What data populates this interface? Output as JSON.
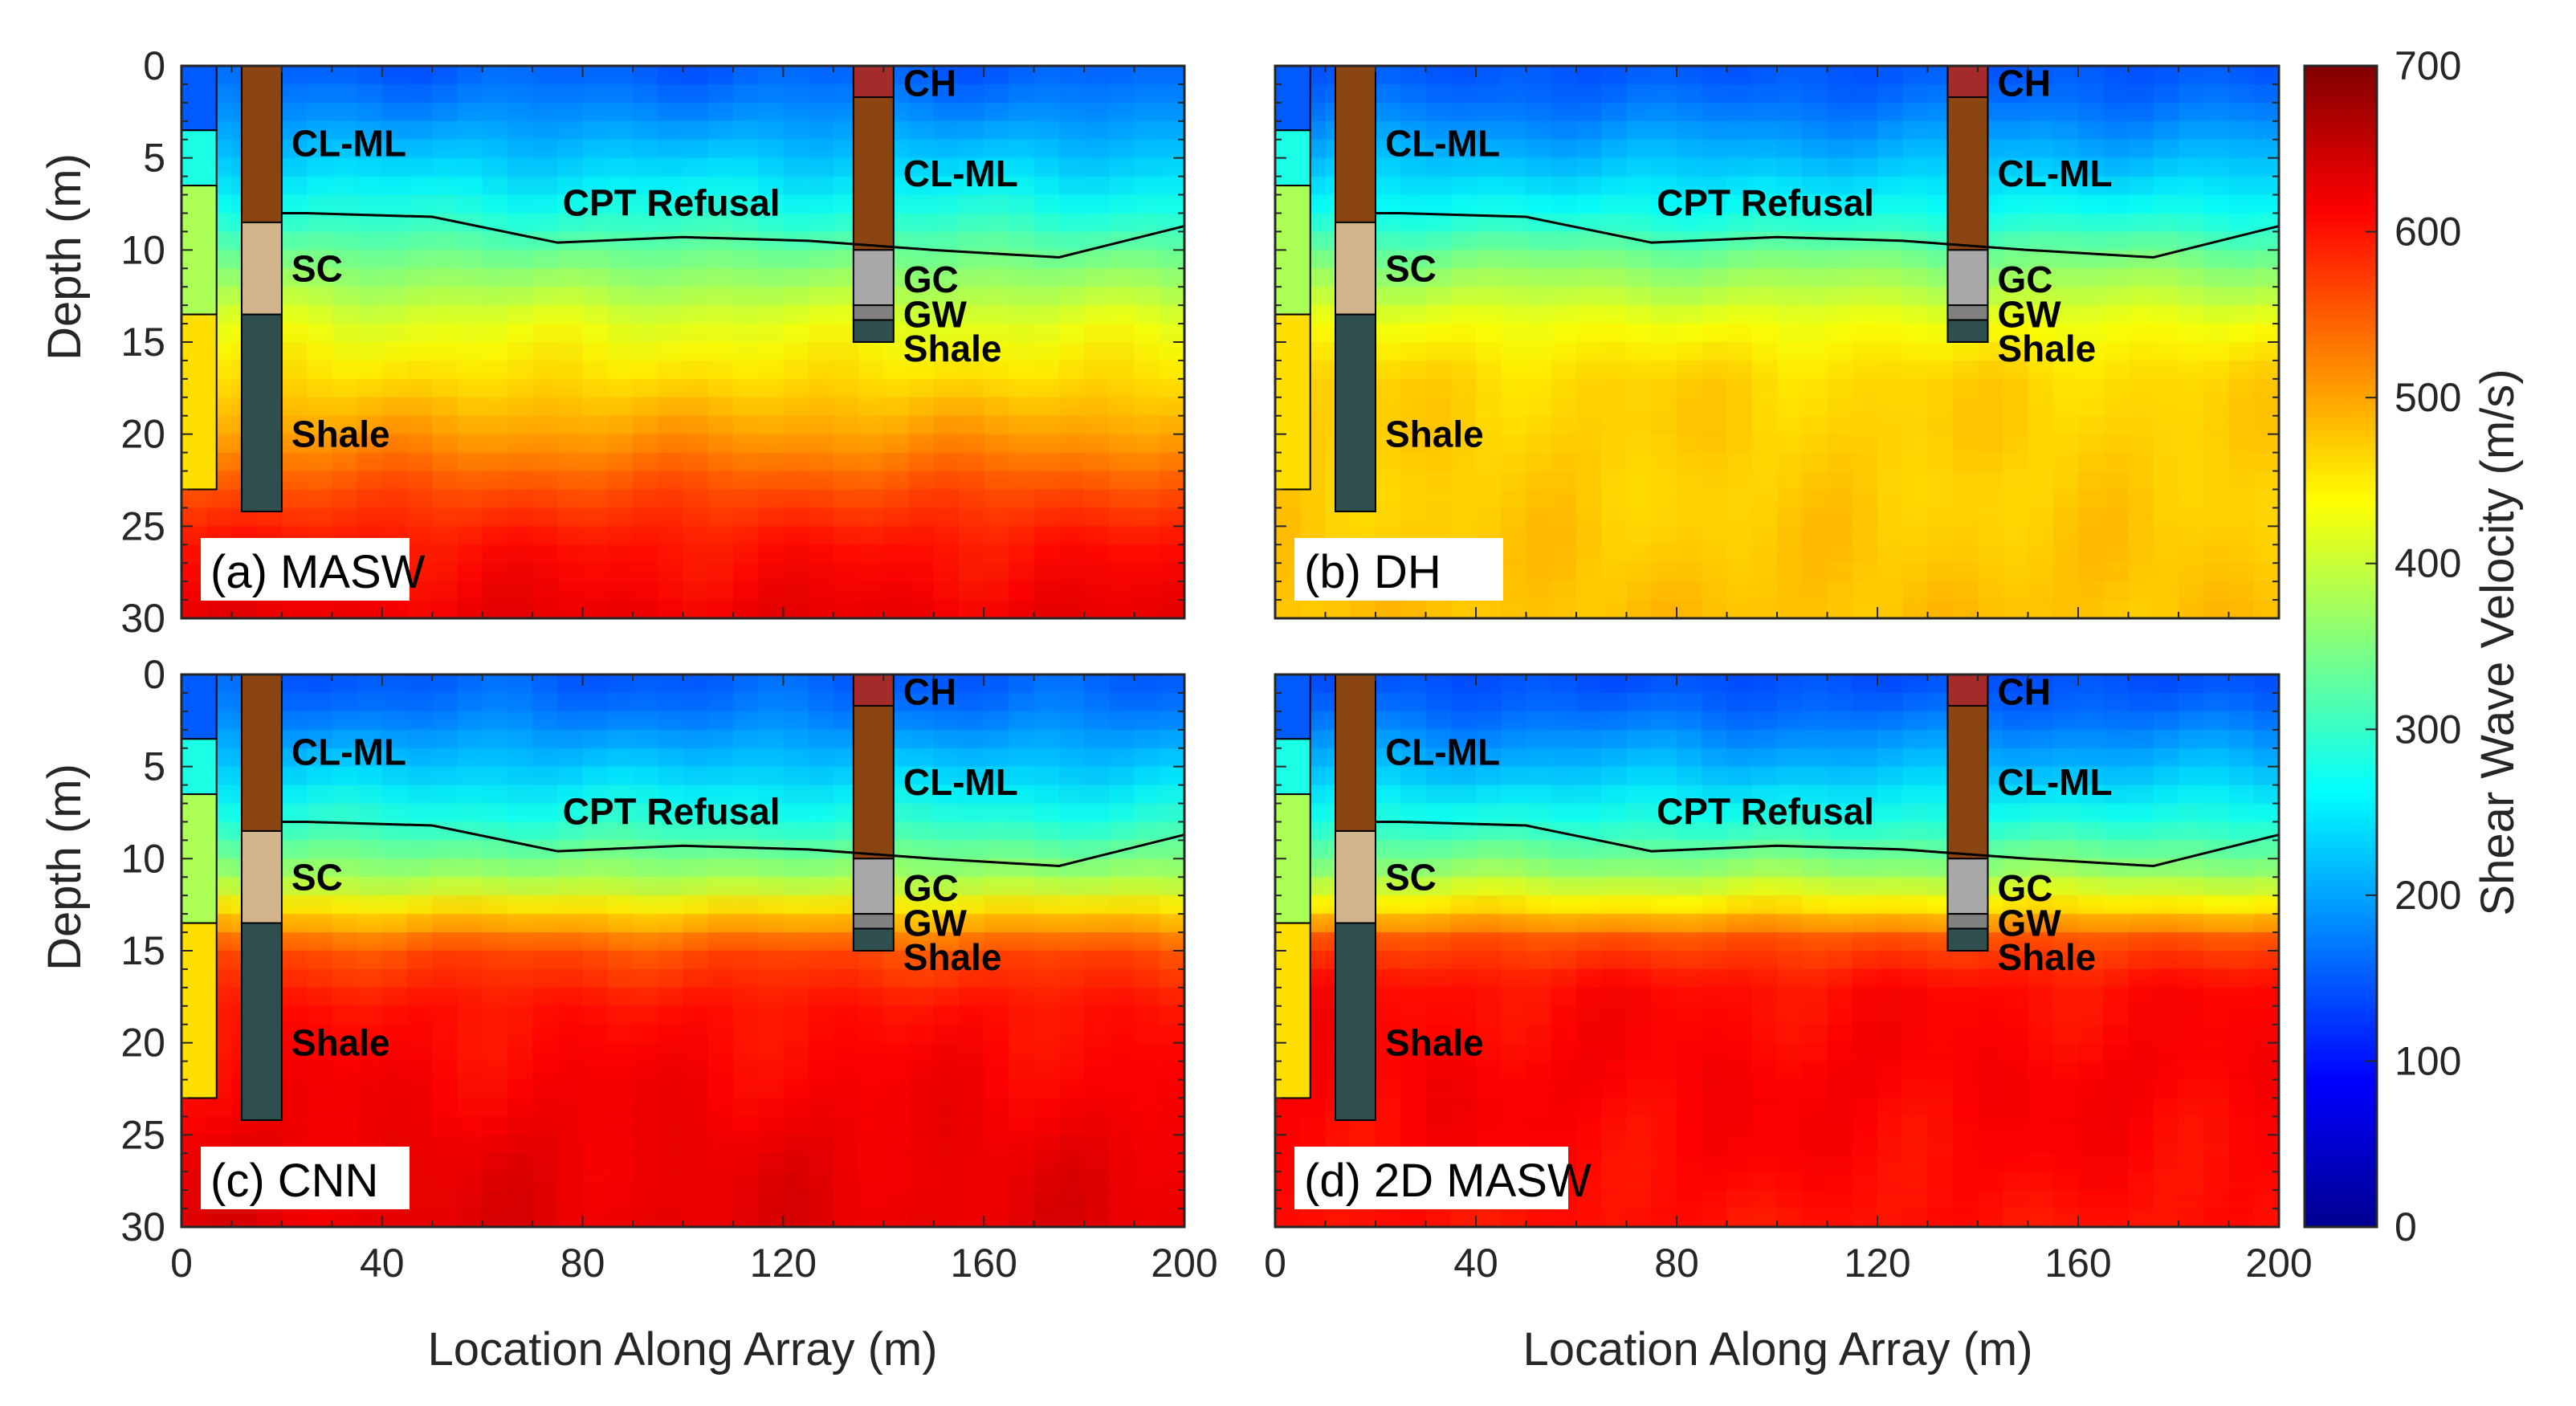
{
  "chart_data": {
    "type": "heatmap",
    "title": "",
    "xlabel": "Location Along Array (m)",
    "ylabel": "Depth (m)",
    "xlim": [
      0,
      200
    ],
    "ylim": [
      0,
      30
    ],
    "x_ticks": [
      "0",
      "40",
      "80",
      "120",
      "160",
      "200"
    ],
    "y_ticks": [
      "0",
      "5",
      "10",
      "15",
      "20",
      "25",
      "30"
    ],
    "colorbar": {
      "label": "Shear Wave Velocity (m/s)",
      "range": [
        0,
        700
      ],
      "ticks": [
        "0",
        "100",
        "200",
        "300",
        "400",
        "500",
        "600",
        "700"
      ],
      "colormap": [
        "#00008f",
        "#0000ff",
        "#0080ff",
        "#00ffff",
        "#80ff80",
        "#ffff00",
        "#ff8000",
        "#ff0000",
        "#800000"
      ]
    },
    "cpt_refusal": {
      "label": "CPT Refusal",
      "x": [
        0,
        25,
        50,
        75,
        100,
        125,
        150,
        175,
        200
      ],
      "depth": [
        8.0,
        8.0,
        8.2,
        9.6,
        9.3,
        9.5,
        10.0,
        10.4,
        8.7
      ]
    },
    "borehole_left": {
      "x": [
        12,
        20
      ],
      "layers": [
        {
          "label": "CL-ML",
          "top": 0,
          "bottom": 8.5,
          "color": "#8b4513"
        },
        {
          "label": "SC",
          "top": 8.5,
          "bottom": 13.5,
          "color": "#d2b48c"
        },
        {
          "label": "Shale",
          "top": 13.5,
          "bottom": 24.2,
          "color": "#2f4f4f"
        }
      ]
    },
    "borehole_right": {
      "x": [
        134,
        142
      ],
      "layers": [
        {
          "label": "CH",
          "top": 0,
          "bottom": 1.7,
          "color": "#a52a2a"
        },
        {
          "label": "CL-ML",
          "top": 1.7,
          "bottom": 10,
          "color": "#8b4513"
        },
        {
          "label": "GC",
          "top": 10,
          "bottom": 13,
          "color": "#a9a9a9"
        },
        {
          "label": "GW",
          "top": 13,
          "bottom": 13.8,
          "color": "#808080"
        },
        {
          "label": "Shale",
          "top": 13.8,
          "bottom": 15,
          "color": "#2f4f4f"
        }
      ]
    },
    "profile_1d": {
      "x": [
        0,
        7
      ],
      "layers": [
        {
          "top": 0,
          "bottom": 3.5,
          "vs": 150
        },
        {
          "top": 3.5,
          "bottom": 6.5,
          "vs": 280
        },
        {
          "top": 6.5,
          "bottom": 13.5,
          "vs": 380
        },
        {
          "top": 13.5,
          "bottom": 23,
          "vs": 460
        }
      ]
    },
    "panels": [
      {
        "label": "(a) MASW",
        "depth_profile": [
          {
            "depth": 0,
            "vs": 150
          },
          {
            "depth": 2,
            "vs": 175
          },
          {
            "depth": 5,
            "vs": 225
          },
          {
            "depth": 8,
            "vs": 285
          },
          {
            "depth": 11,
            "vs": 355
          },
          {
            "depth": 14,
            "vs": 420
          },
          {
            "depth": 17,
            "vs": 460
          },
          {
            "depth": 20,
            "vs": 505
          },
          {
            "depth": 23,
            "vs": 560
          },
          {
            "depth": 26,
            "vs": 600
          },
          {
            "depth": 30,
            "vs": 625
          }
        ]
      },
      {
        "label": "(b) DH",
        "depth_profile": [
          {
            "depth": 0,
            "vs": 145
          },
          {
            "depth": 2,
            "vs": 165
          },
          {
            "depth": 5,
            "vs": 215
          },
          {
            "depth": 8,
            "vs": 275
          },
          {
            "depth": 11,
            "vs": 360
          },
          {
            "depth": 14,
            "vs": 430
          },
          {
            "depth": 17,
            "vs": 465
          },
          {
            "depth": 20,
            "vs": 470
          },
          {
            "depth": 23,
            "vs": 470
          },
          {
            "depth": 26,
            "vs": 475
          },
          {
            "depth": 30,
            "vs": 480
          }
        ]
      },
      {
        "label": "(c) CNN",
        "depth_profile": [
          {
            "depth": 0,
            "vs": 150
          },
          {
            "depth": 2,
            "vs": 170
          },
          {
            "depth": 5,
            "vs": 225
          },
          {
            "depth": 8,
            "vs": 290
          },
          {
            "depth": 11,
            "vs": 375
          },
          {
            "depth": 13,
            "vs": 470
          },
          {
            "depth": 15,
            "vs": 560
          },
          {
            "depth": 18,
            "vs": 600
          },
          {
            "depth": 22,
            "vs": 615
          },
          {
            "depth": 26,
            "vs": 625
          },
          {
            "depth": 30,
            "vs": 630
          }
        ]
      },
      {
        "label": "(d) 2D MASW",
        "depth_profile": [
          {
            "depth": 0,
            "vs": 140
          },
          {
            "depth": 2,
            "vs": 160
          },
          {
            "depth": 5,
            "vs": 215
          },
          {
            "depth": 8,
            "vs": 285
          },
          {
            "depth": 10.5,
            "vs": 360
          },
          {
            "depth": 12.5,
            "vs": 450
          },
          {
            "depth": 14.5,
            "vs": 560
          },
          {
            "depth": 17,
            "vs": 605
          },
          {
            "depth": 22,
            "vs": 615
          },
          {
            "depth": 26,
            "vs": 610
          },
          {
            "depth": 30,
            "vs": 600
          }
        ]
      }
    ]
  }
}
